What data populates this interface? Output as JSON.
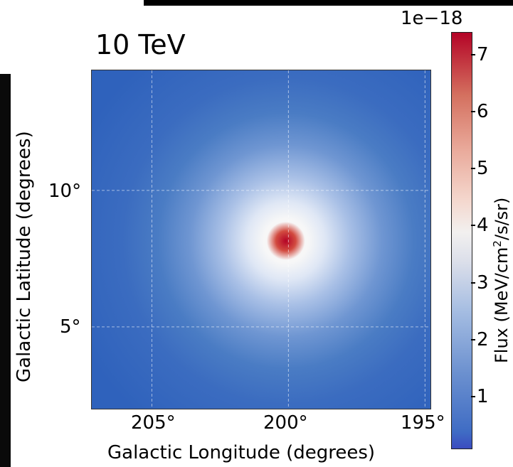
{
  "chart_data": {
    "type": "heatmap",
    "title": "10 TeV",
    "xlabel": "Galactic Longitude (degrees)",
    "ylabel": "Galactic Latitude (degrees)",
    "xlim": [
      207.2,
      194.8
    ],
    "ylim": [
      2.0,
      14.4
    ],
    "x_ticks": [
      "205°",
      "200°",
      "195°"
    ],
    "y_ticks": [
      "10°",
      "5°"
    ],
    "grid": true,
    "peak": {
      "l": 201.1,
      "b": 8.2,
      "value": 7.0
    },
    "colormap": "coolwarm",
    "colorbar": {
      "label": "Flux (MeV/cm",
      "label_sup": "2",
      "label_tail": "/s/sr)",
      "exponent": "1e−18",
      "ticks": [
        "1",
        "2",
        "3",
        "4",
        "5",
        "6",
        "7"
      ],
      "range": [
        0.1,
        7.4
      ]
    }
  }
}
